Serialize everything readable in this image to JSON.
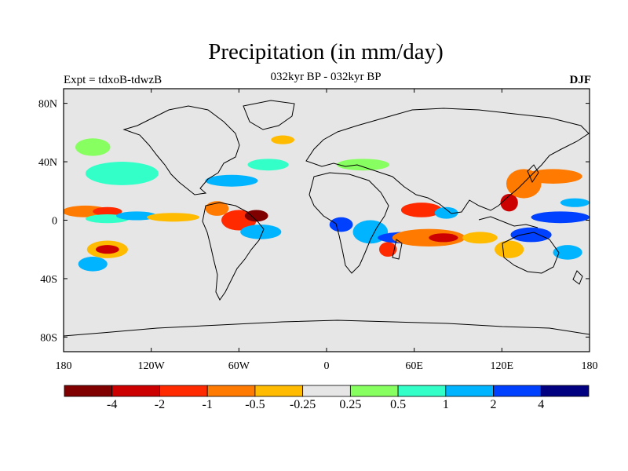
{
  "header": {
    "title": "Precipitation (in mm/day)",
    "subtitle": "032kyr BP - 032kyr BP",
    "experiment": "Expt = tdxoB-tdwzB",
    "season": "DJF"
  },
  "chart_data": {
    "type": "heatmap",
    "title": "Precipitation (in mm/day)",
    "subtitle": "032kyr BP - 032kyr BP",
    "xlabel": "",
    "ylabel": "",
    "x_ticks": [
      "180",
      "120W",
      "60W",
      "0",
      "60E",
      "120E",
      "180"
    ],
    "x_tick_values": [
      -180,
      -120,
      -60,
      0,
      60,
      120,
      180
    ],
    "y_ticks": [
      "80N",
      "40N",
      "0",
      "40S",
      "80S"
    ],
    "y_tick_values": [
      80,
      40,
      0,
      -40,
      -80
    ],
    "xlim": [
      -180,
      180
    ],
    "ylim": [
      -90,
      90
    ],
    "background_color": "#e6e6e6",
    "colorbar": {
      "levels": [
        "-4",
        "-2",
        "-1",
        "-0.5",
        "-0.25",
        "0.25",
        "0.5",
        "1",
        "2",
        "4"
      ],
      "colors": [
        "#800000",
        "#cc0000",
        "#ff2a00",
        "#ff7a00",
        "#ffbb00",
        "#e6e6e6",
        "#88ff60",
        "#33ffc8",
        "#00b4ff",
        "#0040ff",
        "#000080"
      ]
    },
    "anomalies": [
      {
        "lon": -165,
        "lat": 6,
        "rx": 16,
        "ry": 4,
        "level": 3
      },
      {
        "lon": -150,
        "lat": 6,
        "rx": 10,
        "ry": 3,
        "level": 2
      },
      {
        "lon": -150,
        "lat": 1,
        "rx": 15,
        "ry": 3,
        "level": 7
      },
      {
        "lon": -130,
        "lat": 3,
        "rx": 14,
        "ry": 3,
        "level": 8
      },
      {
        "lon": -105,
        "lat": 2,
        "rx": 18,
        "ry": 3,
        "level": 4
      },
      {
        "lon": -150,
        "lat": -20,
        "rx": 14,
        "ry": 6,
        "level": 4
      },
      {
        "lon": -150,
        "lat": -20,
        "rx": 8,
        "ry": 3,
        "level": 1
      },
      {
        "lon": -160,
        "lat": -30,
        "rx": 10,
        "ry": 5,
        "level": 8
      },
      {
        "lon": -140,
        "lat": 32,
        "rx": 25,
        "ry": 8,
        "level": 7
      },
      {
        "lon": -160,
        "lat": 50,
        "rx": 12,
        "ry": 6,
        "level": 6
      },
      {
        "lon": -75,
        "lat": 8,
        "rx": 8,
        "ry": 5,
        "level": 3
      },
      {
        "lon": -60,
        "lat": 0,
        "rx": 12,
        "ry": 7,
        "level": 2
      },
      {
        "lon": -48,
        "lat": 3,
        "rx": 8,
        "ry": 4,
        "level": 0
      },
      {
        "lon": -45,
        "lat": -8,
        "rx": 14,
        "ry": 5,
        "level": 8
      },
      {
        "lon": -65,
        "lat": 27,
        "rx": 18,
        "ry": 4,
        "level": 8
      },
      {
        "lon": -40,
        "lat": 38,
        "rx": 14,
        "ry": 4,
        "level": 7
      },
      {
        "lon": -30,
        "lat": 55,
        "rx": 8,
        "ry": 3,
        "level": 4
      },
      {
        "lon": 25,
        "lat": 38,
        "rx": 18,
        "ry": 4,
        "level": 6
      },
      {
        "lon": 10,
        "lat": -3,
        "rx": 8,
        "ry": 5,
        "level": 9
      },
      {
        "lon": 30,
        "lat": -8,
        "rx": 12,
        "ry": 8,
        "level": 8
      },
      {
        "lon": 42,
        "lat": -20,
        "rx": 6,
        "ry": 5,
        "level": 2
      },
      {
        "lon": 55,
        "lat": -12,
        "rx": 20,
        "ry": 4,
        "level": 9
      },
      {
        "lon": 70,
        "lat": -12,
        "rx": 25,
        "ry": 6,
        "level": 3
      },
      {
        "lon": 80,
        "lat": -12,
        "rx": 10,
        "ry": 3,
        "level": 1
      },
      {
        "lon": 65,
        "lat": 7,
        "rx": 14,
        "ry": 5,
        "level": 2
      },
      {
        "lon": 82,
        "lat": 5,
        "rx": 8,
        "ry": 4,
        "level": 8
      },
      {
        "lon": 105,
        "lat": -12,
        "rx": 12,
        "ry": 4,
        "level": 4
      },
      {
        "lon": 125,
        "lat": 12,
        "rx": 6,
        "ry": 6,
        "level": 1
      },
      {
        "lon": 135,
        "lat": 25,
        "rx": 12,
        "ry": 10,
        "level": 3
      },
      {
        "lon": 155,
        "lat": 30,
        "rx": 20,
        "ry": 5,
        "level": 3
      },
      {
        "lon": 160,
        "lat": 2,
        "rx": 20,
        "ry": 4,
        "level": 9
      },
      {
        "lon": 140,
        "lat": -10,
        "rx": 14,
        "ry": 5,
        "level": 9
      },
      {
        "lon": 165,
        "lat": -22,
        "rx": 10,
        "ry": 5,
        "level": 8
      },
      {
        "lon": 125,
        "lat": -20,
        "rx": 10,
        "ry": 6,
        "level": 4
      },
      {
        "lon": 170,
        "lat": 12,
        "rx": 10,
        "ry": 3,
        "level": 8
      }
    ]
  }
}
